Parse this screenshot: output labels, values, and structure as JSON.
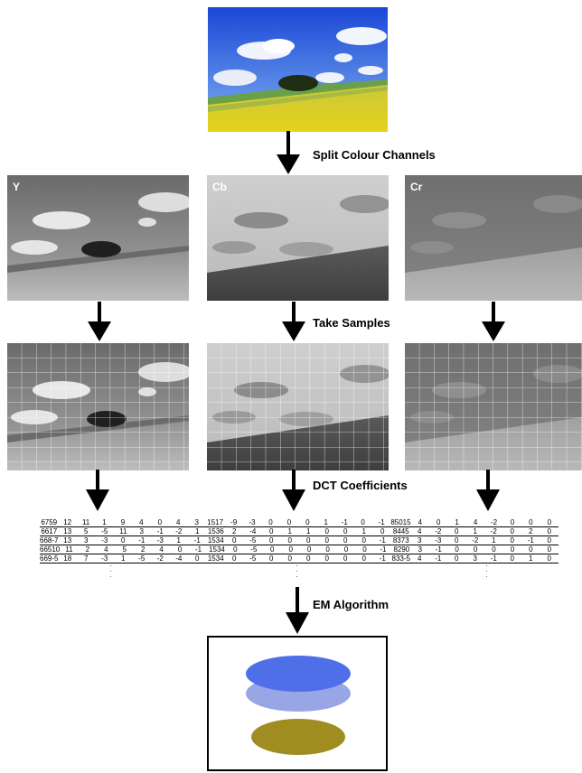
{
  "steps": {
    "split": "Split Colour Channels",
    "sample": "Take Samples",
    "dct": "DCT  Coefficients",
    "em": "EM Algorithm"
  },
  "channels": [
    {
      "label": "Y"
    },
    {
      "label": "Cb"
    },
    {
      "label": "Cr"
    }
  ],
  "coefficients": {
    "rows": [
      [
        "6759",
        "12",
        "11",
        "1",
        "9",
        "4",
        "0",
        "4",
        "3",
        "1517",
        "-9",
        "-3",
        "0",
        "0",
        "0",
        "1",
        "-1",
        "0",
        "-1",
        "85015",
        "4",
        "0",
        "1",
        "4",
        "-2",
        "0",
        "0",
        "0"
      ],
      [
        "6617",
        "13",
        "5",
        "-5",
        "11",
        "3",
        "-1",
        "-2",
        "1",
        "1536",
        "2",
        "-4",
        "0",
        "1",
        "1",
        "0",
        "0",
        "1",
        "0",
        "8445",
        "4",
        "-2",
        "0",
        "1",
        "-2",
        "0",
        "2",
        "0"
      ],
      [
        "668-7",
        "13",
        "3",
        "-3",
        "0",
        "-1",
        "-3",
        "1",
        "-1",
        "1534",
        "0",
        "-5",
        "0",
        "0",
        "0",
        "0",
        "0",
        "0",
        "-1",
        "8373",
        "3",
        "-3",
        "0",
        "-2",
        "1",
        "0",
        "-1",
        "0"
      ],
      [
        "66510",
        "11",
        "2",
        "4",
        "5",
        "2",
        "4",
        "0",
        "-1",
        "1534",
        "0",
        "-5",
        "0",
        "0",
        "0",
        "0",
        "0",
        "0",
        "-1",
        "8290",
        "3",
        "-1",
        "0",
        "0",
        "0",
        "0",
        "0",
        "0"
      ],
      [
        "669-5",
        "18",
        "7",
        "-3",
        "1",
        "-5",
        "-2",
        "-4",
        "0",
        "1534",
        "0",
        "-5",
        "0",
        "0",
        "0",
        "0",
        "0",
        "0",
        "-1",
        "833-5",
        "4",
        "-1",
        "0",
        "3",
        "-1",
        "0",
        "1",
        "0"
      ]
    ]
  },
  "colors": {
    "gaussian_top": "#4f6fe8",
    "gaussian_mid": "#98a6e6",
    "gaussian_bottom": "#a08d22"
  }
}
